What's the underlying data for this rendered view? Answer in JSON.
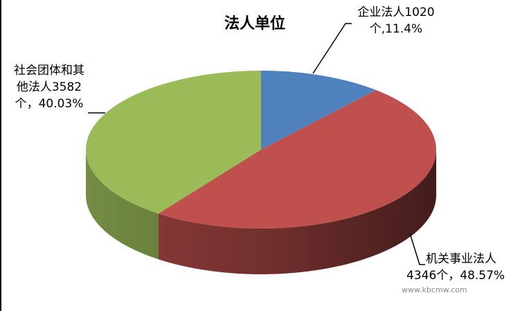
{
  "chart_data": {
    "type": "pie",
    "style": "3d",
    "title": "法人单位",
    "slices": [
      {
        "label_line1": "企业法人1020",
        "label_line2": "个,11.4%",
        "value": 1020,
        "percent": 11.4,
        "color": "#4f81bd"
      },
      {
        "label_line1": "机关事业法人",
        "label_line2": "4346个，48.57%",
        "value": 4346,
        "percent": 48.57,
        "color": "#c0504d"
      },
      {
        "label_line1": "社会团体和其",
        "label_line2": "他法人3582",
        "label_line3": "个，40.03%",
        "value": 3582,
        "percent": 40.03,
        "color": "#9bbb59"
      }
    ],
    "legend": "none"
  },
  "watermark": "www.kbcmw.com"
}
